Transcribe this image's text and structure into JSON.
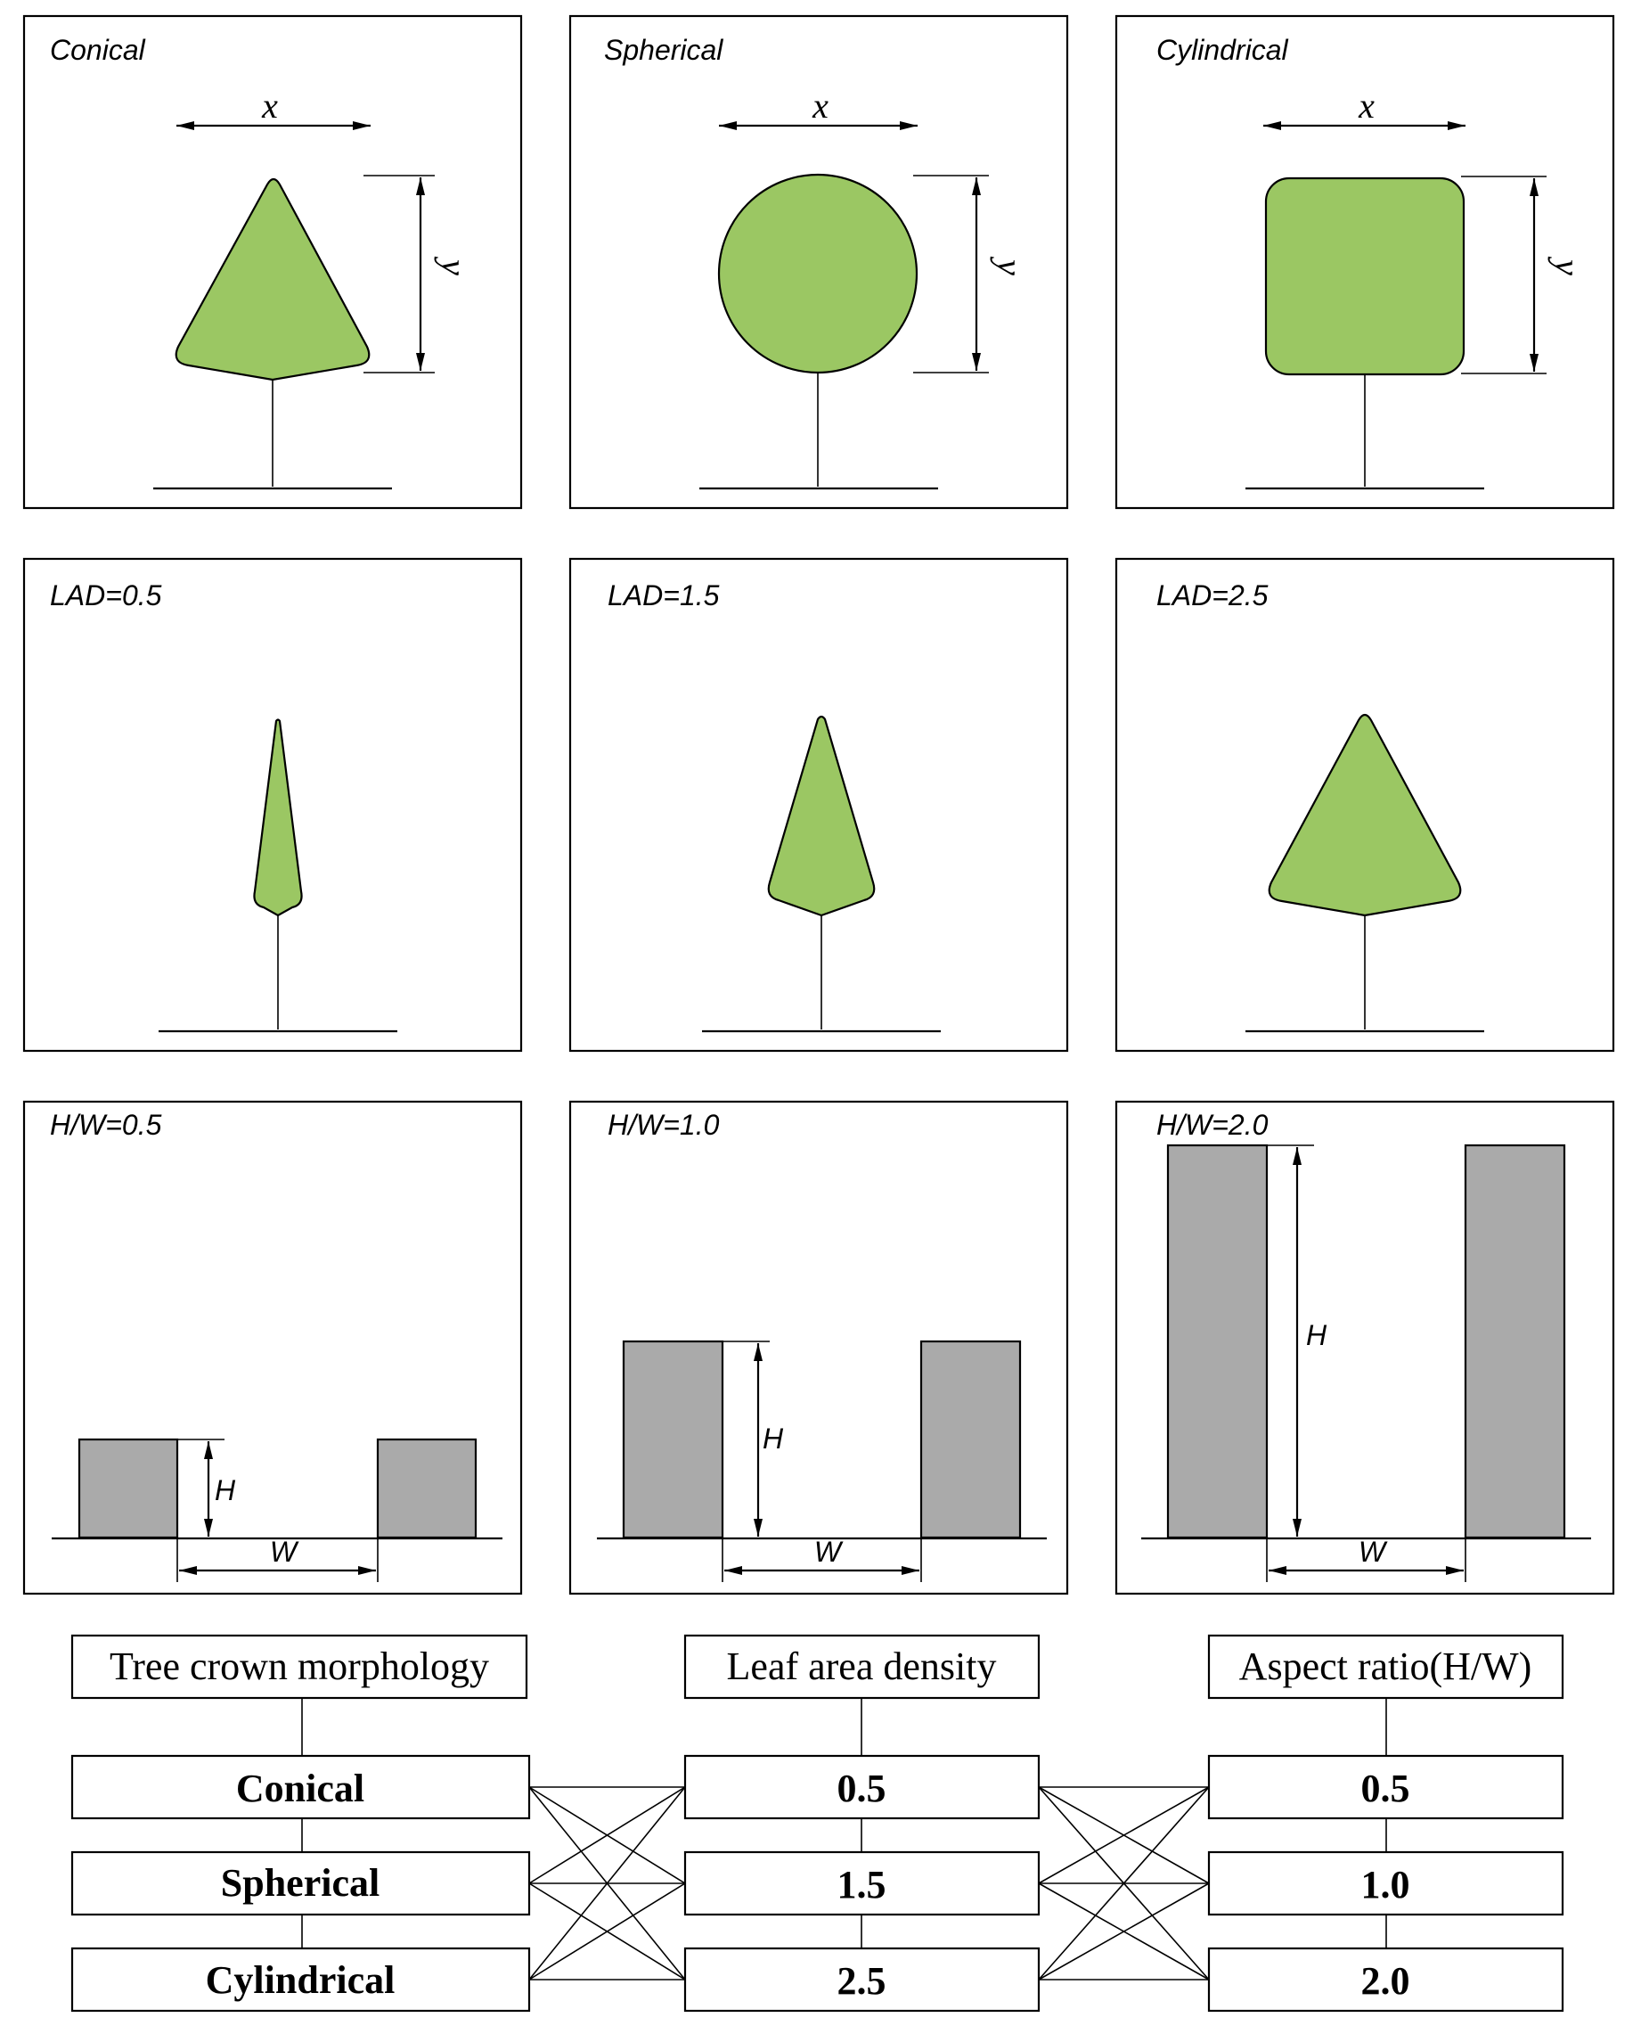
{
  "panels": {
    "conical": {
      "label": "Conical",
      "x": "x",
      "y": "y"
    },
    "spherical": {
      "label": "Spherical",
      "x": "x",
      "y": "y"
    },
    "cylindrical": {
      "label": "Cylindrical",
      "x": "x",
      "y": "y"
    },
    "lad1": {
      "label": "LAD=0.5"
    },
    "lad2": {
      "label": "LAD=1.5"
    },
    "lad3": {
      "label": "LAD=2.5"
    },
    "hw1": {
      "label": "H/W=0.5",
      "h": "H",
      "w": "W"
    },
    "hw2": {
      "label": "H/W=1.0",
      "h": "H",
      "w": "W"
    },
    "hw3": {
      "label": "H/W=2.0",
      "h": "H",
      "w": "W"
    }
  },
  "factors": {
    "crown": {
      "header": "Tree crown morphology",
      "levels": [
        "Conical",
        "Spherical",
        "Cylindrical"
      ]
    },
    "lad": {
      "header": "Leaf area density",
      "levels": [
        "0.5",
        "1.5",
        "2.5"
      ]
    },
    "aspect": {
      "header": "Aspect ratio(H/W)",
      "levels": [
        "0.5",
        "1.0",
        "2.0"
      ]
    }
  },
  "colors": {
    "crown_fill": "#9bc763",
    "building_fill": "#aaaaaa"
  }
}
